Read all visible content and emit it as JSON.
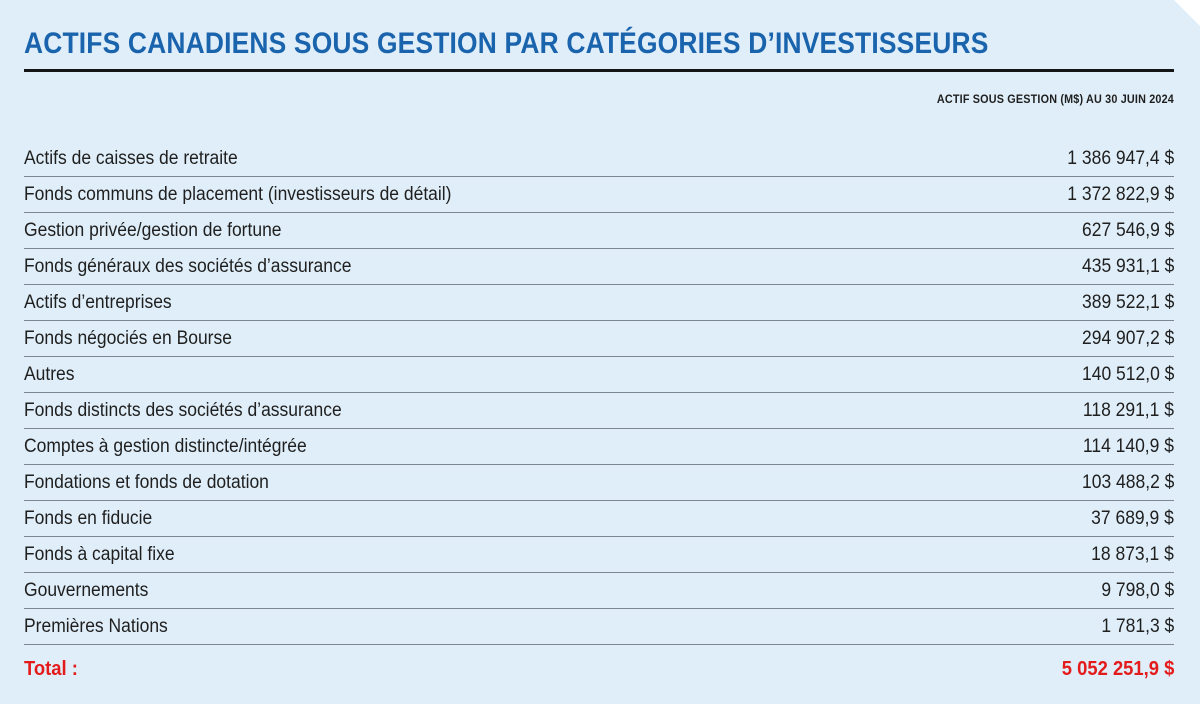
{
  "chart_data": {
    "type": "table",
    "title": "ACTIFS CANADIENS SOUS GESTION PAR CATÉGORIES D’INVESTISSEURS",
    "column_header": "ACTIF SOUS GESTION (M$) AU 30 JUIN 2024",
    "rows": [
      {
        "label": "Actifs de caisses de retraite",
        "value_text": "1 386 947,4 $",
        "value": 1386947.4
      },
      {
        "label": "Fonds communs de placement (investisseurs de détail)",
        "value_text": "1 372 822,9 $",
        "value": 1372822.9
      },
      {
        "label": "Gestion privée/gestion de fortune",
        "value_text": "627 546,9 $",
        "value": 627546.9
      },
      {
        "label": "Fonds généraux des sociétés d’assurance",
        "value_text": "435 931,1 $",
        "value": 435931.1
      },
      {
        "label": "Actifs d’entreprises",
        "value_text": "389 522,1 $",
        "value": 389522.1
      },
      {
        "label": "Fonds négociés en Bourse",
        "value_text": "294 907,2 $",
        "value": 294907.2
      },
      {
        "label": "Autres",
        "value_text": "140 512,0 $",
        "value": 140512.0
      },
      {
        "label": "Fonds distincts des sociétés d’assurance",
        "value_text": "118 291,1 $",
        "value": 118291.1
      },
      {
        "label": "Comptes à gestion distincte/intégrée",
        "value_text": "114 140,9 $",
        "value": 114140.9
      },
      {
        "label": "Fondations et fonds de dotation",
        "value_text": "103 488,2 $",
        "value": 103488.2
      },
      {
        "label": "Fonds en fiducie",
        "value_text": "37 689,9 $",
        "value": 37689.9
      },
      {
        "label": "Fonds à capital fixe",
        "value_text": "18 873,1 $",
        "value": 18873.1
      },
      {
        "label": "Gouvernements",
        "value_text": "9 798,0 $",
        "value": 9798.0
      },
      {
        "label": "Premières Nations",
        "value_text": "1 781,3 $",
        "value": 1781.3
      }
    ],
    "total": {
      "label": "Total :",
      "value_text": "5 052 251,9 $",
      "value": 5052251.9
    }
  },
  "colors": {
    "title": "#1a63ad",
    "total": "#e41b1b",
    "background": "#dfeef8",
    "text": "#1f1f1f"
  }
}
